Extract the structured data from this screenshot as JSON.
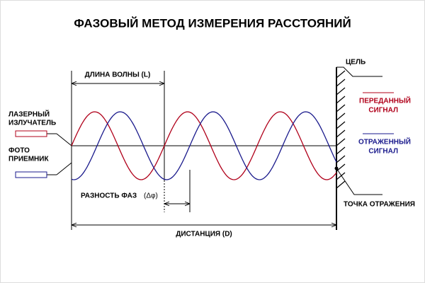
{
  "title": "ФАЗОВЫЙ МЕТОД ИЗМЕРЕНИЯ РАССТОЯНИЙ",
  "labels": {
    "wavelength": "ДЛИНА ВОЛНЫ (L)",
    "target": "ЦЕЛЬ",
    "emitter": [
      "ЛАЗЕРНЫЙ",
      "ИЗЛУЧАТЕЛЬ"
    ],
    "receiver": [
      "ФОТО",
      "ПРИЕМНИК"
    ],
    "transmitted": [
      "ПЕРЕДАННЫЙ",
      "СИГНАЛ"
    ],
    "reflected": [
      "ОТРАЖЕННЫЙ",
      "СИГНАЛ"
    ],
    "phase_difference": "РАЗНОСТЬ ФАЗ",
    "phase_symbol": "(Δφ)",
    "reflection_point": "ТОЧКА ОТРАЖЕНИЯ",
    "distance": "ДИСТАНЦИЯ (D)"
  }
}
